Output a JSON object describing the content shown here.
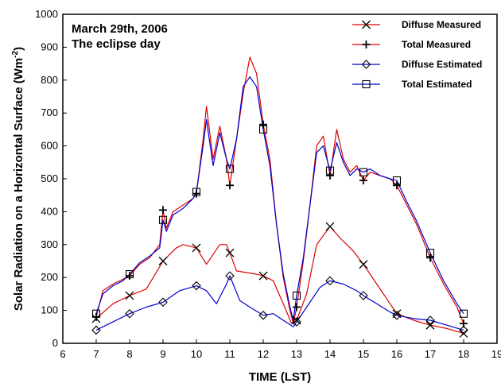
{
  "chart_data": {
    "type": "line",
    "title": "",
    "annotation": [
      "March 29th, 2006",
      "The eclipse day"
    ],
    "xlabel": "TIME (LST)",
    "ylabel": "Solar Radiation on a Horizontal Surface (Wm-2)",
    "ylabel_main": "Solar Radiation on a Horizontal Surface (Wm",
    "ylabel_sup": "-2",
    "ylabel_close": ")",
    "xlim": [
      6,
      19
    ],
    "ylim": [
      0,
      1000
    ],
    "xticks": [
      6,
      7,
      8,
      9,
      10,
      11,
      12,
      13,
      14,
      15,
      16,
      17,
      18,
      19
    ],
    "yticks": [
      0,
      100,
      200,
      300,
      400,
      500,
      600,
      700,
      800,
      900,
      1000
    ],
    "legend_position": "top-right",
    "series": [
      {
        "name": "Diffuse Measured",
        "color": "#e00000",
        "marker": "x",
        "x": [
          7.0,
          7.5,
          8.0,
          8.5,
          9.0,
          9.4,
          9.6,
          10.0,
          10.3,
          10.7,
          10.9,
          11.0,
          11.2,
          11.5,
          11.8,
          12.0,
          12.3,
          12.6,
          12.85,
          13.0,
          13.3,
          13.6,
          14.0,
          14.3,
          14.7,
          15.0,
          15.4,
          15.8,
          16.0,
          16.5,
          17.0,
          17.5,
          18.0
        ],
        "y": [
          75,
          120,
          145,
          165,
          250,
          290,
          300,
          290,
          240,
          300,
          300,
          275,
          220,
          215,
          210,
          205,
          190,
          120,
          60,
          70,
          150,
          300,
          355,
          320,
          280,
          240,
          180,
          120,
          90,
          70,
          55,
          45,
          30
        ],
        "marker_x": [
          7,
          8,
          9,
          10,
          11,
          12,
          13,
          14,
          15,
          16,
          17,
          18
        ],
        "marker_y": [
          75,
          145,
          250,
          290,
          275,
          205,
          70,
          355,
          240,
          90,
          55,
          30
        ]
      },
      {
        "name": "Total Measured",
        "color": "#e00000",
        "marker": "+",
        "x": [
          7.0,
          7.2,
          7.5,
          7.8,
          8.0,
          8.3,
          8.6,
          8.9,
          9.0,
          9.1,
          9.3,
          9.6,
          9.9,
          10.0,
          10.2,
          10.3,
          10.5,
          10.7,
          10.9,
          11.0,
          11.2,
          11.4,
          11.6,
          11.8,
          12.0,
          12.2,
          12.4,
          12.6,
          12.8,
          12.9,
          13.0,
          13.2,
          13.4,
          13.6,
          13.8,
          14.0,
          14.2,
          14.4,
          14.6,
          14.8,
          15.0,
          15.2,
          15.5,
          15.8,
          16.0,
          16.3,
          16.6,
          17.0,
          17.4,
          17.8,
          18.0
        ],
        "y": [
          80,
          160,
          180,
          195,
          205,
          240,
          260,
          300,
          405,
          350,
          400,
          420,
          440,
          455,
          620,
          720,
          560,
          660,
          560,
          480,
          620,
          760,
          870,
          820,
          665,
          560,
          360,
          200,
          100,
          60,
          110,
          250,
          420,
          600,
          630,
          510,
          650,
          560,
          520,
          540,
          495,
          520,
          510,
          500,
          480,
          420,
          360,
          260,
          180,
          110,
          60
        ],
        "marker_x": [
          7,
          8,
          9,
          10,
          11,
          12,
          13,
          14,
          15,
          16,
          17,
          18
        ],
        "marker_y": [
          80,
          205,
          405,
          455,
          480,
          665,
          110,
          510,
          495,
          480,
          260,
          60
        ]
      },
      {
        "name": "Diffuse Estimated",
        "color": "#0000cc",
        "marker": "diamond",
        "x": [
          7.0,
          7.5,
          8.0,
          8.5,
          9.0,
          9.5,
          10.0,
          10.3,
          10.6,
          10.9,
          11.0,
          11.3,
          11.6,
          12.0,
          12.3,
          12.6,
          12.9,
          13.0,
          13.3,
          13.7,
          14.0,
          14.4,
          14.8,
          15.0,
          15.4,
          15.8,
          16.0,
          16.5,
          17.0,
          17.5,
          18.0
        ],
        "y": [
          40,
          65,
          90,
          110,
          125,
          160,
          175,
          160,
          120,
          180,
          205,
          130,
          110,
          85,
          90,
          70,
          50,
          65,
          110,
          170,
          190,
          180,
          160,
          145,
          120,
          95,
          85,
          75,
          70,
          55,
          40
        ],
        "marker_x": [
          7,
          8,
          9,
          10,
          11,
          12,
          13,
          14,
          15,
          16,
          17,
          18
        ],
        "marker_y": [
          40,
          90,
          125,
          175,
          205,
          85,
          65,
          190,
          145,
          85,
          70,
          40
        ]
      },
      {
        "name": "Total Estimated",
        "color": "#0000cc",
        "marker": "square",
        "x": [
          7.0,
          7.2,
          7.5,
          7.8,
          8.0,
          8.3,
          8.6,
          8.9,
          9.0,
          9.1,
          9.3,
          9.6,
          9.9,
          10.0,
          10.2,
          10.3,
          10.5,
          10.7,
          10.9,
          11.0,
          11.2,
          11.4,
          11.6,
          11.8,
          12.0,
          12.2,
          12.4,
          12.6,
          12.8,
          12.9,
          13.0,
          13.2,
          13.4,
          13.6,
          13.8,
          14.0,
          14.2,
          14.4,
          14.6,
          14.8,
          15.0,
          15.2,
          15.5,
          15.8,
          16.0,
          16.3,
          16.6,
          17.0,
          17.4,
          17.8,
          18.0
        ],
        "y": [
          90,
          150,
          175,
          190,
          210,
          245,
          265,
          290,
          375,
          340,
          390,
          410,
          440,
          460,
          600,
          680,
          540,
          640,
          560,
          530,
          620,
          780,
          810,
          780,
          650,
          540,
          360,
          210,
          110,
          70,
          145,
          260,
          420,
          580,
          600,
          525,
          610,
          550,
          510,
          530,
          520,
          530,
          510,
          500,
          495,
          430,
          370,
          275,
          190,
          120,
          90
        ],
        "marker_x": [
          7,
          8,
          9,
          10,
          11,
          12,
          13,
          14,
          15,
          16,
          17,
          18
        ],
        "marker_y": [
          90,
          210,
          375,
          460,
          530,
          650,
          145,
          525,
          520,
          495,
          275,
          90
        ]
      }
    ]
  }
}
